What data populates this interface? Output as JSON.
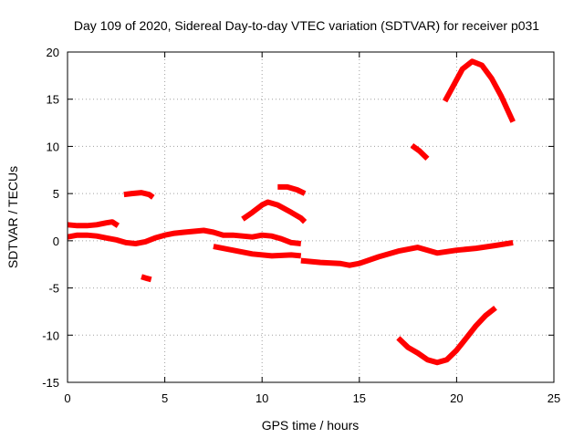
{
  "chart_data": {
    "type": "line",
    "title": "Day 109 of 2020, Sidereal Day-to-day VTEC variation (SDTVAR) for receiver p031",
    "xlabel": "GPS time / hours",
    "ylabel": "SDTVAR / TECUs",
    "xlim": [
      0,
      25
    ],
    "ylim": [
      -15,
      20
    ],
    "xticks": [
      0,
      5,
      10,
      15,
      20,
      25
    ],
    "yticks": [
      -15,
      -10,
      -5,
      0,
      5,
      10,
      15,
      20
    ],
    "xtick_labels": [
      "0",
      "5",
      "10",
      "15",
      "20",
      "25"
    ],
    "ytick_labels": [
      "-15",
      "-10",
      "-5",
      "0",
      "5",
      "10",
      "15",
      "20"
    ],
    "grid": true,
    "color": "#ff0000",
    "series": [
      {
        "name": "arc-upper-left",
        "x": [
          0.0,
          0.5,
          1.0,
          1.5,
          2.0,
          2.3,
          2.6
        ],
        "y": [
          1.7,
          1.6,
          1.6,
          1.7,
          1.9,
          2.0,
          1.6
        ]
      },
      {
        "name": "arc-main-left",
        "x": [
          0.0,
          0.5,
          1.0,
          1.5,
          2.0,
          2.5,
          3.0,
          3.5,
          4.0,
          4.5,
          5.0,
          5.5,
          6.0,
          6.5,
          7.0,
          7.5,
          8.0,
          8.5,
          9.0,
          9.5,
          10.0,
          10.5,
          11.0,
          11.5,
          12.0
        ],
        "y": [
          0.4,
          0.6,
          0.6,
          0.5,
          0.3,
          0.1,
          -0.2,
          -0.3,
          -0.1,
          0.3,
          0.6,
          0.8,
          0.9,
          1.0,
          1.1,
          0.9,
          0.6,
          0.6,
          0.5,
          0.4,
          0.6,
          0.5,
          0.2,
          -0.2,
          -0.3
        ]
      },
      {
        "name": "arc-small-5",
        "x": [
          2.9,
          3.3,
          3.8,
          4.2,
          4.4
        ],
        "y": [
          4.9,
          5.0,
          5.1,
          4.9,
          4.6
        ]
      },
      {
        "name": "arc-small-neg4",
        "x": [
          3.8,
          4.1,
          4.3
        ],
        "y": [
          -3.8,
          -4.0,
          -4.1
        ]
      },
      {
        "name": "arc-lower-mid",
        "x": [
          7.5,
          8.5,
          9.5,
          10.5,
          11.5,
          12.0
        ],
        "y": [
          -0.6,
          -1.0,
          -1.4,
          -1.6,
          -1.5,
          -1.6
        ]
      },
      {
        "name": "arc-hump-4",
        "x": [
          9.0,
          9.5,
          10.0,
          10.3,
          10.8,
          11.5,
          12.0,
          12.2
        ],
        "y": [
          2.3,
          3.0,
          3.8,
          4.1,
          3.8,
          3.0,
          2.4,
          2.0
        ]
      },
      {
        "name": "arc-small-6",
        "x": [
          10.8,
          11.3,
          11.8,
          12.2
        ],
        "y": [
          5.7,
          5.7,
          5.4,
          5.0
        ]
      },
      {
        "name": "arc-main-right",
        "x": [
          12.0,
          13.0,
          14.0,
          14.5,
          15.0,
          16.0,
          17.0,
          18.0,
          19.0,
          20.0,
          21.0,
          22.0,
          22.9
        ],
        "y": [
          -2.1,
          -2.3,
          -2.4,
          -2.6,
          -2.4,
          -1.7,
          -1.1,
          -0.7,
          -1.3,
          -1.0,
          -0.8,
          -0.5,
          -0.2
        ]
      },
      {
        "name": "arc-small-10",
        "x": [
          17.7,
          18.1,
          18.5
        ],
        "y": [
          10.1,
          9.5,
          8.7
        ]
      },
      {
        "name": "arc-high-19",
        "x": [
          19.4,
          19.8,
          20.3,
          20.8,
          21.3,
          21.8,
          22.3,
          22.9
        ],
        "y": [
          14.8,
          16.3,
          18.2,
          19.0,
          18.6,
          17.2,
          15.3,
          12.6
        ]
      },
      {
        "name": "arc-low-neg12",
        "x": [
          17.0,
          17.5,
          18.0,
          18.5,
          19.0,
          19.5,
          20.0,
          20.5,
          21.0,
          21.5,
          22.0
        ],
        "y": [
          -10.3,
          -11.3,
          -11.9,
          -12.6,
          -12.9,
          -12.6,
          -11.6,
          -10.3,
          -9.0,
          -7.9,
          -7.1
        ]
      }
    ]
  }
}
